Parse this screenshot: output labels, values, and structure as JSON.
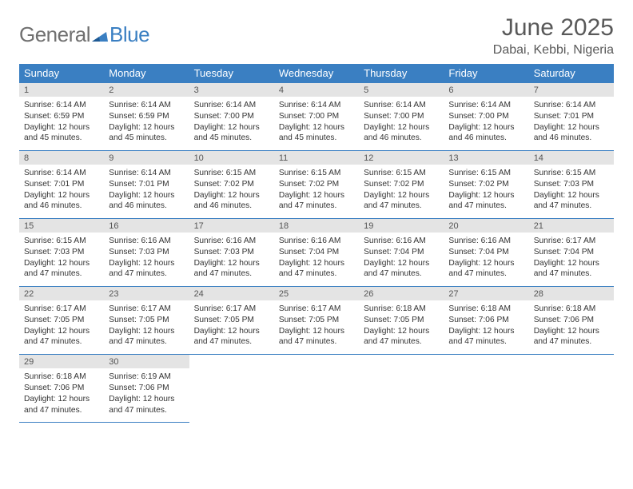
{
  "brand": {
    "part1": "General",
    "part2": "Blue"
  },
  "title": "June 2025",
  "location": "Dabai, Kebbi, Nigeria",
  "colors": {
    "header_bg": "#3a7fc2",
    "header_text": "#ffffff",
    "daynum_bg": "#e4e4e4",
    "border": "#3a7fc2",
    "title_text": "#595959",
    "body_text": "#333333",
    "logo_gray": "#707070",
    "logo_blue": "#3a7fc2",
    "page_bg": "#ffffff"
  },
  "typography": {
    "title_fontsize": 30,
    "location_fontsize": 16,
    "dow_fontsize": 13,
    "daynum_fontsize": 11,
    "detail_fontsize": 10.2,
    "logo_fontsize": 26
  },
  "dow": [
    "Sunday",
    "Monday",
    "Tuesday",
    "Wednesday",
    "Thursday",
    "Friday",
    "Saturday"
  ],
  "weeks": [
    [
      {
        "n": "1",
        "sr": "6:14 AM",
        "ss": "6:59 PM",
        "dl": "12 hours and 45 minutes."
      },
      {
        "n": "2",
        "sr": "6:14 AM",
        "ss": "6:59 PM",
        "dl": "12 hours and 45 minutes."
      },
      {
        "n": "3",
        "sr": "6:14 AM",
        "ss": "7:00 PM",
        "dl": "12 hours and 45 minutes."
      },
      {
        "n": "4",
        "sr": "6:14 AM",
        "ss": "7:00 PM",
        "dl": "12 hours and 45 minutes."
      },
      {
        "n": "5",
        "sr": "6:14 AM",
        "ss": "7:00 PM",
        "dl": "12 hours and 46 minutes."
      },
      {
        "n": "6",
        "sr": "6:14 AM",
        "ss": "7:00 PM",
        "dl": "12 hours and 46 minutes."
      },
      {
        "n": "7",
        "sr": "6:14 AM",
        "ss": "7:01 PM",
        "dl": "12 hours and 46 minutes."
      }
    ],
    [
      {
        "n": "8",
        "sr": "6:14 AM",
        "ss": "7:01 PM",
        "dl": "12 hours and 46 minutes."
      },
      {
        "n": "9",
        "sr": "6:14 AM",
        "ss": "7:01 PM",
        "dl": "12 hours and 46 minutes."
      },
      {
        "n": "10",
        "sr": "6:15 AM",
        "ss": "7:02 PM",
        "dl": "12 hours and 46 minutes."
      },
      {
        "n": "11",
        "sr": "6:15 AM",
        "ss": "7:02 PM",
        "dl": "12 hours and 47 minutes."
      },
      {
        "n": "12",
        "sr": "6:15 AM",
        "ss": "7:02 PM",
        "dl": "12 hours and 47 minutes."
      },
      {
        "n": "13",
        "sr": "6:15 AM",
        "ss": "7:02 PM",
        "dl": "12 hours and 47 minutes."
      },
      {
        "n": "14",
        "sr": "6:15 AM",
        "ss": "7:03 PM",
        "dl": "12 hours and 47 minutes."
      }
    ],
    [
      {
        "n": "15",
        "sr": "6:15 AM",
        "ss": "7:03 PM",
        "dl": "12 hours and 47 minutes."
      },
      {
        "n": "16",
        "sr": "6:16 AM",
        "ss": "7:03 PM",
        "dl": "12 hours and 47 minutes."
      },
      {
        "n": "17",
        "sr": "6:16 AM",
        "ss": "7:03 PM",
        "dl": "12 hours and 47 minutes."
      },
      {
        "n": "18",
        "sr": "6:16 AM",
        "ss": "7:04 PM",
        "dl": "12 hours and 47 minutes."
      },
      {
        "n": "19",
        "sr": "6:16 AM",
        "ss": "7:04 PM",
        "dl": "12 hours and 47 minutes."
      },
      {
        "n": "20",
        "sr": "6:16 AM",
        "ss": "7:04 PM",
        "dl": "12 hours and 47 minutes."
      },
      {
        "n": "21",
        "sr": "6:17 AM",
        "ss": "7:04 PM",
        "dl": "12 hours and 47 minutes."
      }
    ],
    [
      {
        "n": "22",
        "sr": "6:17 AM",
        "ss": "7:05 PM",
        "dl": "12 hours and 47 minutes."
      },
      {
        "n": "23",
        "sr": "6:17 AM",
        "ss": "7:05 PM",
        "dl": "12 hours and 47 minutes."
      },
      {
        "n": "24",
        "sr": "6:17 AM",
        "ss": "7:05 PM",
        "dl": "12 hours and 47 minutes."
      },
      {
        "n": "25",
        "sr": "6:17 AM",
        "ss": "7:05 PM",
        "dl": "12 hours and 47 minutes."
      },
      {
        "n": "26",
        "sr": "6:18 AM",
        "ss": "7:05 PM",
        "dl": "12 hours and 47 minutes."
      },
      {
        "n": "27",
        "sr": "6:18 AM",
        "ss": "7:06 PM",
        "dl": "12 hours and 47 minutes."
      },
      {
        "n": "28",
        "sr": "6:18 AM",
        "ss": "7:06 PM",
        "dl": "12 hours and 47 minutes."
      }
    ],
    [
      {
        "n": "29",
        "sr": "6:18 AM",
        "ss": "7:06 PM",
        "dl": "12 hours and 47 minutes."
      },
      {
        "n": "30",
        "sr": "6:19 AM",
        "ss": "7:06 PM",
        "dl": "12 hours and 47 minutes."
      },
      null,
      null,
      null,
      null,
      null
    ]
  ],
  "labels": {
    "sunrise": "Sunrise:",
    "sunset": "Sunset:",
    "daylight": "Daylight:"
  }
}
